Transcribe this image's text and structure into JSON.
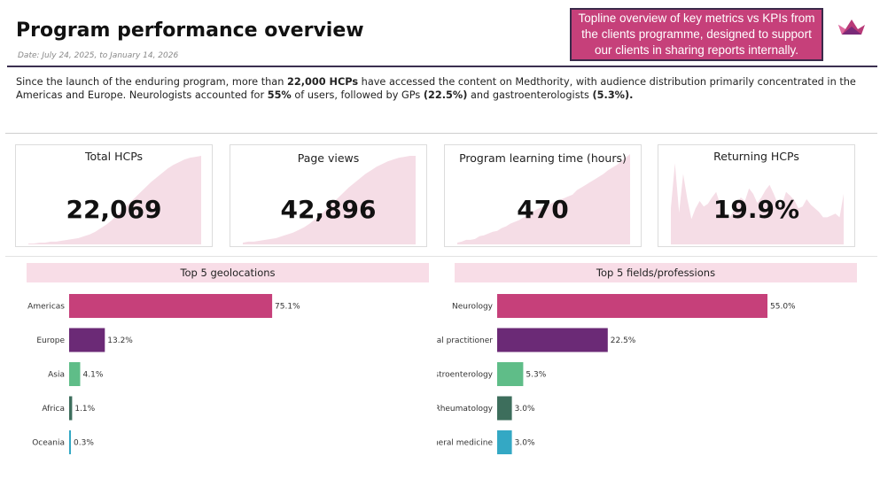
{
  "header": {
    "title": "Program performance overview",
    "date": "Date: July 24, 2025, to January 14, 2026",
    "callout": "Topline overview of key metrics vs KPIs from the clients programme, designed to support our clients in sharing reports internally."
  },
  "summary": [
    {
      "text": "Since the launch of the enduring program, more than ",
      "bold": false
    },
    {
      "text": "22,000 HCPs",
      "bold": true
    },
    {
      "text": " have accessed the content on Medthority, with audience distribution primarily concentrated in the Americas and Europe. Neurologists accounted for ",
      "bold": false
    },
    {
      "text": "55%",
      "bold": true
    },
    {
      "text": " of users, followed by GPs ",
      "bold": false
    },
    {
      "text": "(22.5%)",
      "bold": true
    },
    {
      "text": " and gastroenterologists ",
      "bold": false
    },
    {
      "text": "(5.3%).",
      "bold": true
    }
  ],
  "kpis": [
    {
      "label": "Total HCPs",
      "value": "22,069",
      "spark": [
        1,
        1,
        2,
        2,
        3,
        3,
        4,
        5,
        6,
        7,
        9,
        11,
        14,
        18,
        22,
        27,
        33,
        39,
        45,
        51,
        57,
        63,
        69,
        74,
        79,
        84,
        88,
        91,
        94,
        96,
        97,
        98
      ]
    },
    {
      "label": "Page views",
      "value": "42,896",
      "spark": [
        2,
        3,
        3,
        4,
        5,
        6,
        7,
        9,
        11,
        13,
        16,
        19,
        23,
        28,
        33,
        39,
        45,
        51,
        57,
        63,
        68,
        73,
        78,
        82,
        86,
        89,
        92,
        94,
        96,
        97,
        98,
        98
      ]
    },
    {
      "label": "Program learning time (hours)",
      "value": "470",
      "spark": [
        2,
        3,
        5,
        5,
        6,
        9,
        10,
        12,
        14,
        15,
        18,
        20,
        23,
        25,
        27,
        30,
        33,
        36,
        39,
        41,
        43,
        45,
        47,
        49,
        51,
        53,
        55,
        60,
        63,
        66,
        69,
        72,
        75,
        78,
        82,
        85,
        88,
        92,
        96,
        100
      ]
    },
    {
      "label": "Returning HCPs",
      "value": "19.9%",
      "spark": [
        40,
        90,
        35,
        78,
        50,
        28,
        40,
        48,
        42,
        45,
        52,
        58,
        44,
        36,
        28,
        35,
        45,
        52,
        48,
        62,
        56,
        46,
        52,
        60,
        66,
        56,
        45,
        44,
        58,
        54,
        49,
        40,
        42,
        50,
        44,
        40,
        36,
        30,
        30,
        32,
        34,
        30,
        56
      ]
    }
  ],
  "chart_data": [
    {
      "type": "bar",
      "title": "Top 5 geolocations",
      "categories": [
        "Americas",
        "Europe",
        "Asia",
        "Africa",
        "Oceania"
      ],
      "values": [
        75.1,
        13.2,
        4.1,
        1.1,
        0.3
      ],
      "value_labels": [
        "75.1%",
        "13.2%",
        "4.1%",
        "1.1%",
        "0.3%"
      ],
      "colors": [
        "#c6407a",
        "#6b2a76",
        "#5fbd88",
        "#3d6e5c",
        "#34a8c4"
      ],
      "xlim": [
        0,
        100
      ],
      "xlabel": "",
      "ylabel": ""
    },
    {
      "type": "bar",
      "title": "Top 5 fields/professions",
      "categories": [
        "Neurology",
        "General practitioner",
        "Gastroenterology",
        "Rheumatology",
        "General medicine"
      ],
      "values": [
        55.0,
        22.5,
        5.3,
        3.0,
        3.0
      ],
      "value_labels": [
        "55.0%",
        "22.5%",
        "5.3%",
        "3.0%",
        "3.0%"
      ],
      "colors": [
        "#c6407a",
        "#6b2a76",
        "#5fbd88",
        "#3d6e5c",
        "#34a8c4"
      ],
      "xlim": [
        0,
        55
      ],
      "xlabel": "",
      "ylabel": ""
    }
  ],
  "colors": {
    "accent": "#c6407a",
    "purple": "#6b2a76",
    "spark_fill": "#f5dde6",
    "title_band": "#f8dde7"
  }
}
